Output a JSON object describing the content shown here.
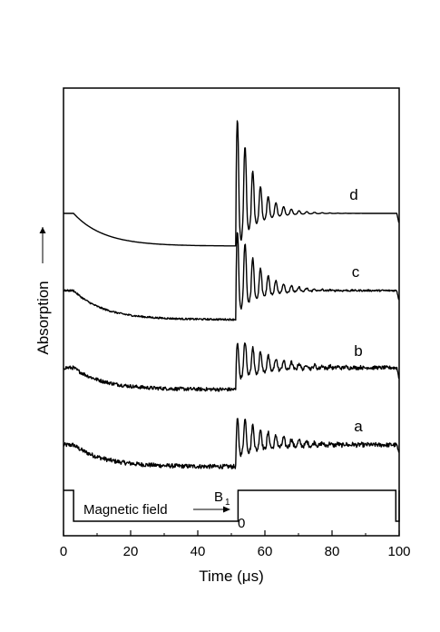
{
  "chart_data": {
    "type": "line",
    "xlabel": "Time (μs)",
    "ylabel": "Absorption",
    "xlim": [
      0,
      100
    ],
    "x_ticks": [
      "0",
      "20",
      "40",
      "60",
      "80",
      "100"
    ],
    "grid": false,
    "series": [
      {
        "name": "a",
        "baseline": 0.0,
        "initial_dip": 0.3,
        "ring_amp": 0.42,
        "ring_decay": 9.0,
        "ring_period": 2.3,
        "noise": 0.03
      },
      {
        "name": "b",
        "baseline": 1.0,
        "initial_dip": 0.3,
        "ring_amp": 0.42,
        "ring_decay": 9.0,
        "ring_period": 2.3,
        "noise": 0.025
      },
      {
        "name": "c",
        "baseline": 1.0,
        "initial_dip": 0.4,
        "ring_amp": 0.9,
        "ring_decay": 6.0,
        "ring_period": 2.3,
        "noise": 0.012
      },
      {
        "name": "d",
        "baseline": 1.0,
        "initial_dip": 0.45,
        "ring_amp": 1.4,
        "ring_decay": 5.0,
        "ring_period": 2.3,
        "noise": 0.0
      }
    ],
    "magnetic_field": {
      "label": "Magnetic field",
      "high_label": "B",
      "high_label_sub": "1",
      "low_label": "0",
      "off_intervals": [
        [
          3,
          52
        ],
        [
          99,
          100
        ]
      ]
    }
  }
}
